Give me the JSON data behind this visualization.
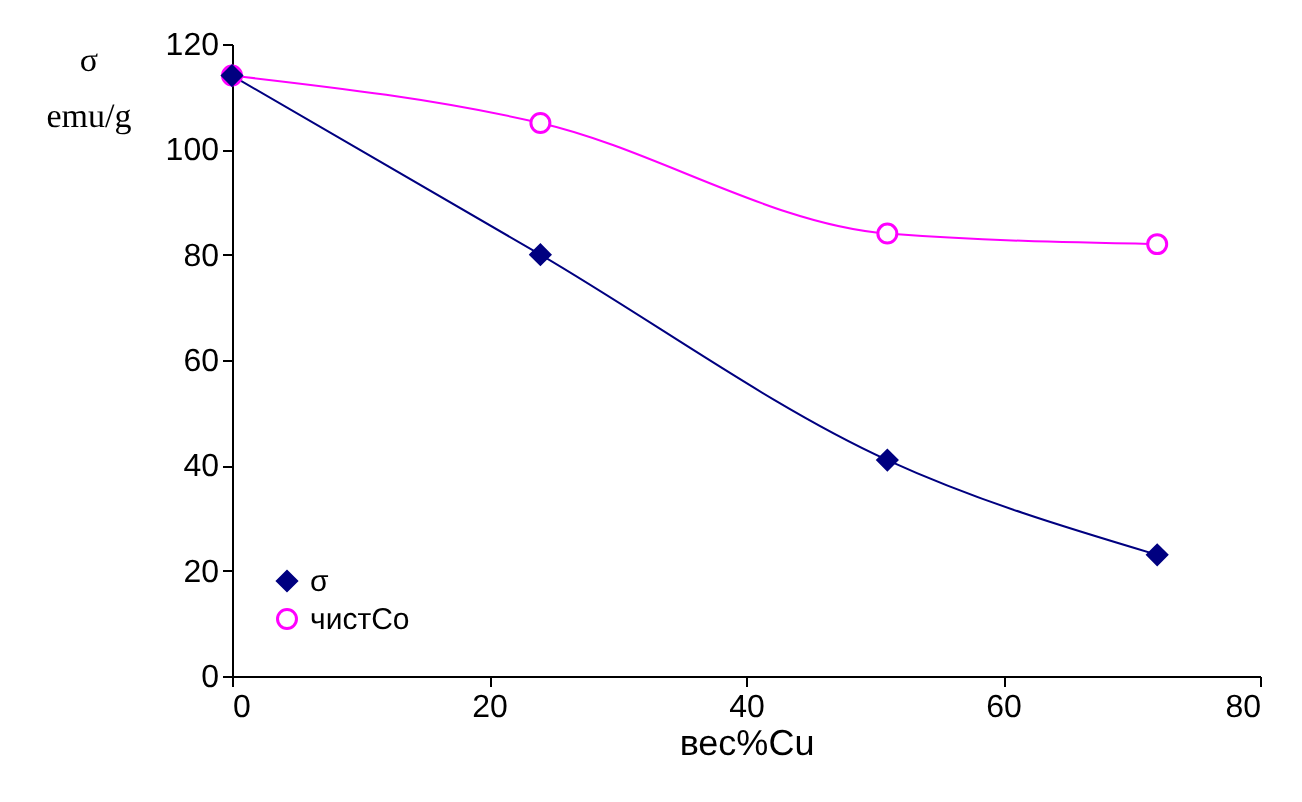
{
  "chart_data": {
    "type": "line",
    "ylabel": "σ\nemu/g",
    "xlabel": "вес%Cu",
    "x": [
      0,
      24,
      51,
      72
    ],
    "series": [
      {
        "name": "σ",
        "color": "#000080",
        "marker": "diamond",
        "values": [
          114,
          80,
          41,
          23
        ]
      },
      {
        "name": "чистСо",
        "color": "#ff00ff",
        "marker": "circle",
        "values": [
          114,
          105,
          84,
          82
        ]
      }
    ],
    "xlim": [
      0,
      80
    ],
    "xticks": [
      0,
      20,
      40,
      60,
      80
    ],
    "ylim": [
      0,
      120
    ],
    "yticks": [
      0,
      20,
      40,
      60,
      80,
      100,
      120
    ],
    "grid": false,
    "legend": "bottom left"
  }
}
